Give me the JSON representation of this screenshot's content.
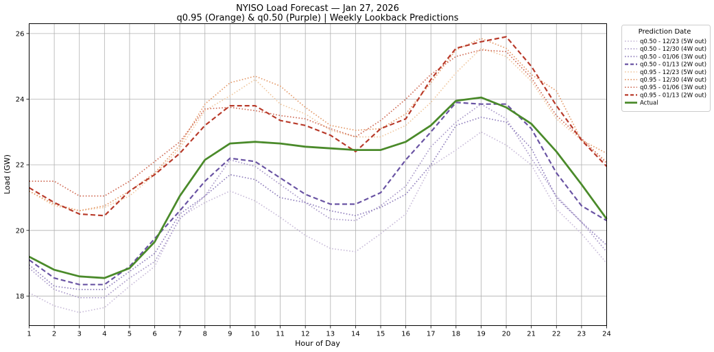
{
  "chart_data": {
    "type": "line",
    "title": "NYISO Load Forecast — Jan 27, 2026",
    "subtitle": "q0.95 (Orange) & q0.50 (Purple) | Weekly Lookback Predictions",
    "xlabel": "Hour of Day",
    "ylabel": "Load (GW)",
    "xlim": [
      1,
      24
    ],
    "ylim": [
      17.1,
      26.3
    ],
    "x_ticks": [
      "1",
      "2",
      "3",
      "4",
      "5",
      "6",
      "7",
      "8",
      "9",
      "10",
      "11",
      "12",
      "13",
      "14",
      "15",
      "16",
      "17",
      "18",
      "19",
      "20",
      "21",
      "22",
      "23",
      "24"
    ],
    "y_ticks": [
      "18",
      "20",
      "22",
      "24",
      "26"
    ],
    "grid": true,
    "legend": {
      "title": "Prediction Date",
      "placement": "upper right, outside plot"
    },
    "x": [
      1,
      2,
      3,
      4,
      5,
      6,
      7,
      8,
      9,
      10,
      11,
      12,
      13,
      14,
      15,
      16,
      17,
      18,
      19,
      20,
      21,
      22,
      23,
      24
    ],
    "series": [
      {
        "name": "q0.50 - 12/23 (5W out)",
        "color": "#c9bcd9",
        "dash": "dotted",
        "width": "thin",
        "values": [
          18.1,
          17.7,
          17.5,
          17.65,
          18.3,
          18.9,
          20.4,
          20.85,
          21.2,
          20.9,
          20.4,
          19.85,
          19.45,
          19.35,
          19.9,
          20.5,
          21.95,
          22.45,
          23.0,
          22.6,
          22.0,
          20.65,
          19.9,
          19.0
        ]
      },
      {
        "name": "q0.50 - 12/30 (4W out)",
        "color": "#a898c8",
        "dash": "dotted",
        "width": "thin",
        "values": [
          18.85,
          18.2,
          17.95,
          17.95,
          18.55,
          19.05,
          20.35,
          21.05,
          22.15,
          21.95,
          21.4,
          20.85,
          20.35,
          20.3,
          20.75,
          21.35,
          22.55,
          23.3,
          23.85,
          23.4,
          22.2,
          21.05,
          20.25,
          19.35
        ]
      },
      {
        "name": "q0.50 - 01/06 (3W out)",
        "color": "#8f7ebc",
        "dash": "dotted",
        "width": "thin",
        "values": [
          18.95,
          18.3,
          18.2,
          18.2,
          18.75,
          19.3,
          20.5,
          21.05,
          21.7,
          21.55,
          21.0,
          20.85,
          20.6,
          20.45,
          20.7,
          21.1,
          22.0,
          23.2,
          23.45,
          23.3,
          22.5,
          21.0,
          20.25,
          19.55
        ]
      },
      {
        "name": "q0.50 - 01/13 (2W out)",
        "color": "#6953a3",
        "dash": "dashed",
        "width": "thick",
        "values": [
          19.1,
          18.55,
          18.35,
          18.35,
          18.9,
          19.75,
          20.6,
          21.5,
          22.2,
          22.1,
          21.6,
          21.1,
          20.8,
          20.8,
          21.15,
          22.15,
          23.0,
          23.9,
          23.85,
          23.85,
          23.1,
          21.75,
          20.75,
          20.3
        ]
      },
      {
        "name": "q0.95 - 12/23 (5W out)",
        "color": "#f0c8a0",
        "dash": "dotted",
        "width": "thin",
        "values": [
          21.2,
          20.75,
          20.6,
          20.7,
          21.05,
          21.7,
          22.5,
          23.65,
          24.1,
          24.6,
          23.85,
          23.55,
          23.05,
          22.85,
          22.85,
          23.2,
          23.9,
          24.8,
          25.55,
          25.3,
          24.55,
          23.4,
          22.75,
          22.1
        ]
      },
      {
        "name": "q0.95 - 12/30 (4W out)",
        "color": "#e49a6a",
        "dash": "dotted",
        "width": "thin",
        "values": [
          21.2,
          20.8,
          20.6,
          20.75,
          21.2,
          21.75,
          22.6,
          23.85,
          24.5,
          24.7,
          24.4,
          23.75,
          23.2,
          23.05,
          23.1,
          23.55,
          24.5,
          25.5,
          25.85,
          25.55,
          24.75,
          24.25,
          22.75,
          22.35
        ]
      },
      {
        "name": "q0.95 - 01/06 (3W out)",
        "color": "#cf6b55",
        "dash": "dotted",
        "width": "thin",
        "values": [
          21.5,
          21.5,
          21.05,
          21.05,
          21.5,
          22.1,
          22.7,
          23.7,
          23.75,
          23.65,
          23.5,
          23.4,
          23.1,
          22.85,
          23.35,
          24.0,
          24.75,
          25.3,
          25.5,
          25.45,
          24.65,
          23.5,
          22.8,
          22.05
        ]
      },
      {
        "name": "q0.95 - 01/13 (2W out)",
        "color": "#b83a2a",
        "dash": "dashed",
        "width": "thick",
        "values": [
          21.3,
          20.85,
          20.5,
          20.45,
          21.2,
          21.7,
          22.35,
          23.2,
          23.8,
          23.8,
          23.35,
          23.2,
          22.9,
          22.4,
          23.1,
          23.4,
          24.6,
          25.55,
          25.75,
          25.9,
          25.0,
          23.8,
          22.75,
          21.95
        ]
      },
      {
        "name": "Actual",
        "color": "#4a8a2a",
        "dash": "solid",
        "width": "bold",
        "values": [
          19.2,
          18.8,
          18.6,
          18.55,
          18.85,
          19.65,
          21.05,
          22.15,
          22.65,
          22.7,
          22.65,
          22.55,
          22.5,
          22.45,
          22.45,
          22.7,
          23.2,
          23.95,
          24.05,
          23.75,
          23.25,
          22.4,
          21.4,
          20.35
        ]
      }
    ]
  }
}
